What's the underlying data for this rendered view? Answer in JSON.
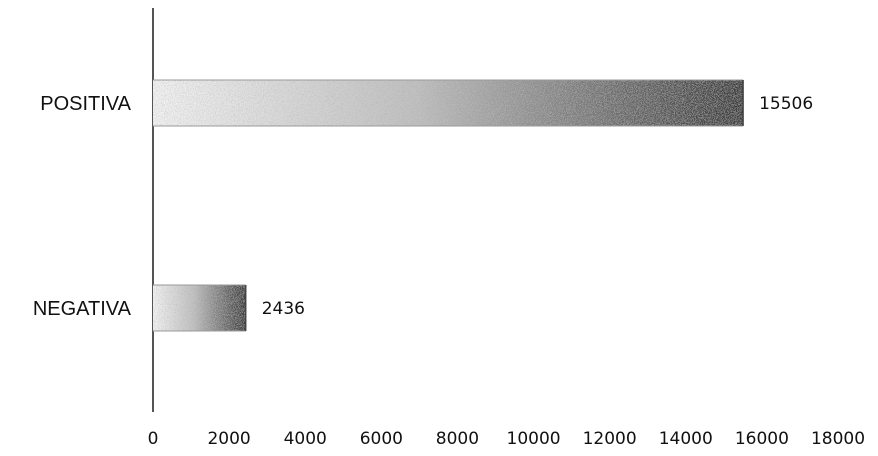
{
  "chart_data": {
    "type": "bar",
    "orientation": "horizontal",
    "categories": [
      "POSITIVA",
      "NEGATIVA"
    ],
    "values": [
      15506,
      2436
    ],
    "data_labels": [
      "15506",
      "2436"
    ],
    "xlim": [
      0,
      18000
    ],
    "x_ticks": [
      0,
      2000,
      4000,
      6000,
      8000,
      10000,
      12000,
      14000,
      16000,
      18000
    ],
    "x_tick_labels": [
      "0",
      "2000",
      "4000",
      "6000",
      "8000",
      "10000",
      "12000",
      "14000",
      "16000",
      "18000"
    ],
    "title": "",
    "xlabel": "",
    "ylabel": "",
    "grid": false,
    "legend": "none",
    "colors": {
      "bar_light": "#f2f2f2",
      "bar_mid": "#bdbdbd",
      "bar_dark": "#3c3c3c",
      "axis": "#555555",
      "text": "#111111"
    }
  }
}
